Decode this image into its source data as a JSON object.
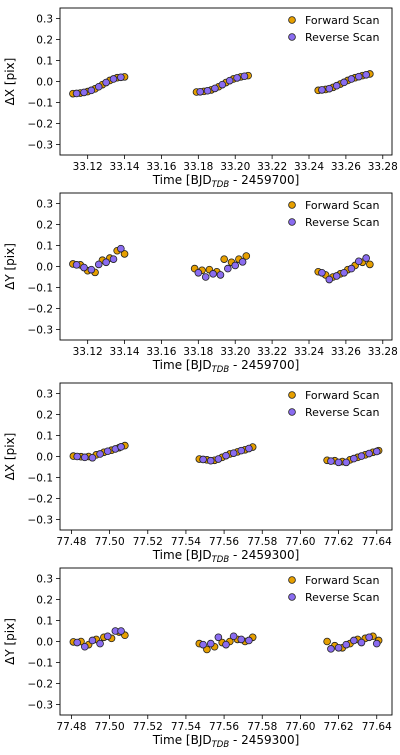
{
  "colors": {
    "forward": "#E69F00",
    "reverse": "#8A6CF0",
    "edge": "#222222"
  },
  "chart_data": [
    {
      "type": "scatter",
      "xlabel": "Time [BJD",
      "xlabel_sub": "TDB",
      "xlabel_suffix": " - 2459700]",
      "ylabel": "ΔX [pix]",
      "xlim": [
        33.105,
        33.285
      ],
      "ylim": [
        -0.35,
        0.35
      ],
      "xticks": [
        33.12,
        33.14,
        33.16,
        33.18,
        33.2,
        33.22,
        33.24,
        33.26,
        33.28
      ],
      "xtick_labels": [
        "33.12",
        "33.14",
        "33.16",
        "33.18",
        "33.20",
        "33.22",
        "33.24",
        "33.26",
        "33.28"
      ],
      "yticks": [
        -0.3,
        -0.2,
        -0.1,
        0.0,
        0.1,
        0.2,
        0.3
      ],
      "ytick_labels": [
        "−0.3",
        "−0.2",
        "−0.1",
        "0.0",
        "0.1",
        "0.2",
        "0.3"
      ],
      "legend": [
        "Forward Scan",
        "Reverse Scan"
      ],
      "series": [
        {
          "name": "Forward Scan",
          "points": [
            [
              33.112,
              -0.058
            ],
            [
              33.116,
              -0.055
            ],
            [
              33.12,
              -0.048
            ],
            [
              33.124,
              -0.035
            ],
            [
              33.128,
              -0.015
            ],
            [
              33.132,
              0.005
            ],
            [
              33.136,
              0.018
            ],
            [
              33.14,
              0.022
            ],
            [
              33.179,
              -0.05
            ],
            [
              33.183,
              -0.047
            ],
            [
              33.187,
              -0.04
            ],
            [
              33.191,
              -0.025
            ],
            [
              33.195,
              -0.005
            ],
            [
              33.199,
              0.012
            ],
            [
              33.203,
              0.022
            ],
            [
              33.207,
              0.028
            ],
            [
              33.245,
              -0.042
            ],
            [
              33.249,
              -0.038
            ],
            [
              33.253,
              -0.028
            ],
            [
              33.257,
              -0.012
            ],
            [
              33.261,
              0.005
            ],
            [
              33.265,
              0.018
            ],
            [
              33.269,
              0.028
            ],
            [
              33.273,
              0.036
            ]
          ]
        },
        {
          "name": "Reverse Scan",
          "points": [
            [
              33.114,
              -0.057
            ],
            [
              33.118,
              -0.052
            ],
            [
              33.122,
              -0.042
            ],
            [
              33.126,
              -0.025
            ],
            [
              33.13,
              -0.005
            ],
            [
              33.134,
              0.012
            ],
            [
              33.138,
              0.02
            ],
            [
              33.181,
              -0.049
            ],
            [
              33.185,
              -0.044
            ],
            [
              33.189,
              -0.033
            ],
            [
              33.193,
              -0.015
            ],
            [
              33.197,
              0.004
            ],
            [
              33.201,
              0.017
            ],
            [
              33.205,
              0.025
            ],
            [
              33.247,
              -0.04
            ],
            [
              33.251,
              -0.034
            ],
            [
              33.255,
              -0.02
            ],
            [
              33.259,
              -0.004
            ],
            [
              33.263,
              0.012
            ],
            [
              33.267,
              0.023
            ],
            [
              33.271,
              0.032
            ]
          ]
        }
      ]
    },
    {
      "type": "scatter",
      "xlabel": "Time [BJD",
      "xlabel_sub": "TDB",
      "xlabel_suffix": " - 2459700]",
      "ylabel": "ΔY [pix]",
      "xlim": [
        33.105,
        33.285
      ],
      "ylim": [
        -0.35,
        0.35
      ],
      "xticks": [
        33.12,
        33.14,
        33.16,
        33.18,
        33.2,
        33.22,
        33.24,
        33.26,
        33.28
      ],
      "xtick_labels": [
        "33.12",
        "33.14",
        "33.16",
        "33.18",
        "33.20",
        "33.22",
        "33.24",
        "33.26",
        "33.28"
      ],
      "yticks": [
        -0.3,
        -0.2,
        -0.1,
        0.0,
        0.1,
        0.2,
        0.3
      ],
      "ytick_labels": [
        "−0.3",
        "−0.2",
        "−0.1",
        "0.0",
        "0.1",
        "0.2",
        "0.3"
      ],
      "legend": [
        "Forward Scan",
        "Reverse Scan"
      ],
      "series": [
        {
          "name": "Forward Scan",
          "points": [
            [
              33.112,
              0.012
            ],
            [
              33.116,
              0.008
            ],
            [
              33.12,
              -0.02
            ],
            [
              33.124,
              -0.028
            ],
            [
              33.128,
              0.03
            ],
            [
              33.132,
              0.04
            ],
            [
              33.136,
              0.075
            ],
            [
              33.14,
              0.06
            ],
            [
              33.178,
              -0.01
            ],
            [
              33.182,
              -0.018
            ],
            [
              33.186,
              -0.015
            ],
            [
              33.19,
              -0.025
            ],
            [
              33.194,
              0.035
            ],
            [
              33.198,
              0.02
            ],
            [
              33.202,
              0.035
            ],
            [
              33.206,
              0.05
            ],
            [
              33.245,
              -0.025
            ],
            [
              33.249,
              -0.04
            ],
            [
              33.253,
              -0.05
            ],
            [
              33.257,
              -0.035
            ],
            [
              33.261,
              -0.015
            ],
            [
              33.265,
              0.005
            ],
            [
              33.269,
              0.02
            ],
            [
              33.273,
              0.01
            ]
          ]
        },
        {
          "name": "Reverse Scan",
          "points": [
            [
              33.114,
              0.008
            ],
            [
              33.118,
              -0.005
            ],
            [
              33.122,
              -0.015
            ],
            [
              33.126,
              0.01
            ],
            [
              33.13,
              0.02
            ],
            [
              33.134,
              0.035
            ],
            [
              33.138,
              0.085
            ],
            [
              33.18,
              -0.03
            ],
            [
              33.184,
              -0.05
            ],
            [
              33.188,
              -0.035
            ],
            [
              33.192,
              -0.04
            ],
            [
              33.196,
              -0.01
            ],
            [
              33.2,
              0.005
            ],
            [
              33.204,
              0.022
            ],
            [
              33.247,
              -0.03
            ],
            [
              33.251,
              -0.062
            ],
            [
              33.255,
              -0.045
            ],
            [
              33.259,
              -0.03
            ],
            [
              33.263,
              -0.01
            ],
            [
              33.267,
              0.025
            ],
            [
              33.271,
              0.04
            ]
          ]
        }
      ]
    },
    {
      "type": "scatter",
      "xlabel": "Time [BJD",
      "xlabel_sub": "TDB",
      "xlabel_suffix": " - 2459300]",
      "ylabel": "ΔX [pix]",
      "xlim": [
        77.474,
        77.648
      ],
      "ylim": [
        -0.35,
        0.35
      ],
      "xticks": [
        77.48,
        77.5,
        77.52,
        77.54,
        77.56,
        77.58,
        77.6,
        77.62,
        77.64
      ],
      "xtick_labels": [
        "77.48",
        "77.50",
        "77.52",
        "77.54",
        "77.56",
        "77.58",
        "77.60",
        "77.62",
        "77.64"
      ],
      "yticks": [
        -0.3,
        -0.2,
        -0.1,
        0.0,
        0.1,
        0.2,
        0.3
      ],
      "ytick_labels": [
        "−0.3",
        "−0.2",
        "−0.1",
        "0.0",
        "0.1",
        "0.2",
        "0.3"
      ],
      "legend": [
        "Forward Scan",
        "Reverse Scan"
      ],
      "series": [
        {
          "name": "Forward Scan",
          "points": [
            [
              77.481,
              0.002
            ],
            [
              77.485,
              -0.001
            ],
            [
              77.489,
              0.0
            ],
            [
              77.493,
              0.008
            ],
            [
              77.497,
              0.02
            ],
            [
              77.501,
              0.03
            ],
            [
              77.505,
              0.042
            ],
            [
              77.508,
              0.052
            ],
            [
              77.547,
              -0.012
            ],
            [
              77.551,
              -0.016
            ],
            [
              77.555,
              -0.018
            ],
            [
              77.559,
              -0.004
            ],
            [
              77.563,
              0.012
            ],
            [
              77.567,
              0.022
            ],
            [
              77.571,
              0.032
            ],
            [
              77.575,
              0.045
            ],
            [
              77.614,
              -0.018
            ],
            [
              77.618,
              -0.02
            ],
            [
              77.622,
              -0.024
            ],
            [
              77.626,
              -0.016
            ],
            [
              77.63,
              -0.004
            ],
            [
              77.634,
              0.008
            ],
            [
              77.638,
              0.02
            ],
            [
              77.641,
              0.028
            ]
          ]
        },
        {
          "name": "Reverse Scan",
          "points": [
            [
              77.483,
              0.0
            ],
            [
              77.487,
              -0.004
            ],
            [
              77.491,
              -0.006
            ],
            [
              77.495,
              0.012
            ],
            [
              77.499,
              0.025
            ],
            [
              77.503,
              0.036
            ],
            [
              77.506,
              0.046
            ],
            [
              77.549,
              -0.014
            ],
            [
              77.553,
              -0.02
            ],
            [
              77.557,
              -0.012
            ],
            [
              77.561,
              0.004
            ],
            [
              77.565,
              0.016
            ],
            [
              77.569,
              0.028
            ],
            [
              77.573,
              0.038
            ],
            [
              77.616,
              -0.022
            ],
            [
              77.62,
              -0.028
            ],
            [
              77.624,
              -0.028
            ],
            [
              77.628,
              -0.01
            ],
            [
              77.632,
              0.002
            ],
            [
              77.636,
              0.014
            ],
            [
              77.64,
              0.024
            ]
          ]
        }
      ]
    },
    {
      "type": "scatter",
      "xlabel": "Time [BJD",
      "xlabel_sub": "TDB",
      "xlabel_suffix": " - 2459300]",
      "ylabel": "ΔY [pix]",
      "xlim": [
        77.474,
        77.648
      ],
      "ylim": [
        -0.35,
        0.35
      ],
      "xticks": [
        77.48,
        77.5,
        77.52,
        77.54,
        77.56,
        77.58,
        77.6,
        77.62,
        77.64
      ],
      "xtick_labels": [
        "77.48",
        "77.50",
        "77.52",
        "77.54",
        "77.56",
        "77.58",
        "77.60",
        "77.62",
        "77.64"
      ],
      "yticks": [
        -0.3,
        -0.2,
        -0.1,
        0.0,
        0.1,
        0.2,
        0.3
      ],
      "ytick_labels": [
        "−0.3",
        "−0.2",
        "−0.1",
        "0.0",
        "0.1",
        "0.2",
        "0.3"
      ],
      "legend": [
        "Forward Scan",
        "Reverse Scan"
      ],
      "series": [
        {
          "name": "Forward Scan",
          "points": [
            [
              77.481,
              -0.002
            ],
            [
              77.485,
              0.0
            ],
            [
              77.489,
              -0.015
            ],
            [
              77.493,
              0.01
            ],
            [
              77.497,
              0.02
            ],
            [
              77.501,
              0.015
            ],
            [
              77.505,
              0.045
            ],
            [
              77.508,
              0.03
            ],
            [
              77.547,
              -0.01
            ],
            [
              77.551,
              -0.038
            ],
            [
              77.555,
              -0.025
            ],
            [
              77.559,
              -0.005
            ],
            [
              77.563,
              0.0
            ],
            [
              77.567,
              0.01
            ],
            [
              77.571,
              0.0
            ],
            [
              77.575,
              0.02
            ],
            [
              77.614,
              0.0
            ],
            [
              77.618,
              -0.02
            ],
            [
              77.622,
              -0.03
            ],
            [
              77.626,
              -0.01
            ],
            [
              77.63,
              0.01
            ],
            [
              77.634,
              0.015
            ],
            [
              77.638,
              0.025
            ],
            [
              77.641,
              0.005
            ]
          ]
        },
        {
          "name": "Reverse Scan",
          "points": [
            [
              77.483,
              -0.005
            ],
            [
              77.487,
              -0.025
            ],
            [
              77.491,
              0.005
            ],
            [
              77.495,
              -0.01
            ],
            [
              77.499,
              0.025
            ],
            [
              77.503,
              0.05
            ],
            [
              77.506,
              0.05
            ],
            [
              77.549,
              -0.015
            ],
            [
              77.553,
              -0.01
            ],
            [
              77.557,
              0.02
            ],
            [
              77.561,
              -0.015
            ],
            [
              77.565,
              0.025
            ],
            [
              77.569,
              0.01
            ],
            [
              77.573,
              0.005
            ],
            [
              77.616,
              -0.035
            ],
            [
              77.62,
              -0.03
            ],
            [
              77.624,
              -0.015
            ],
            [
              77.628,
              0.005
            ],
            [
              77.632,
              -0.005
            ],
            [
              77.636,
              0.02
            ],
            [
              77.64,
              -0.01
            ]
          ]
        }
      ]
    }
  ]
}
